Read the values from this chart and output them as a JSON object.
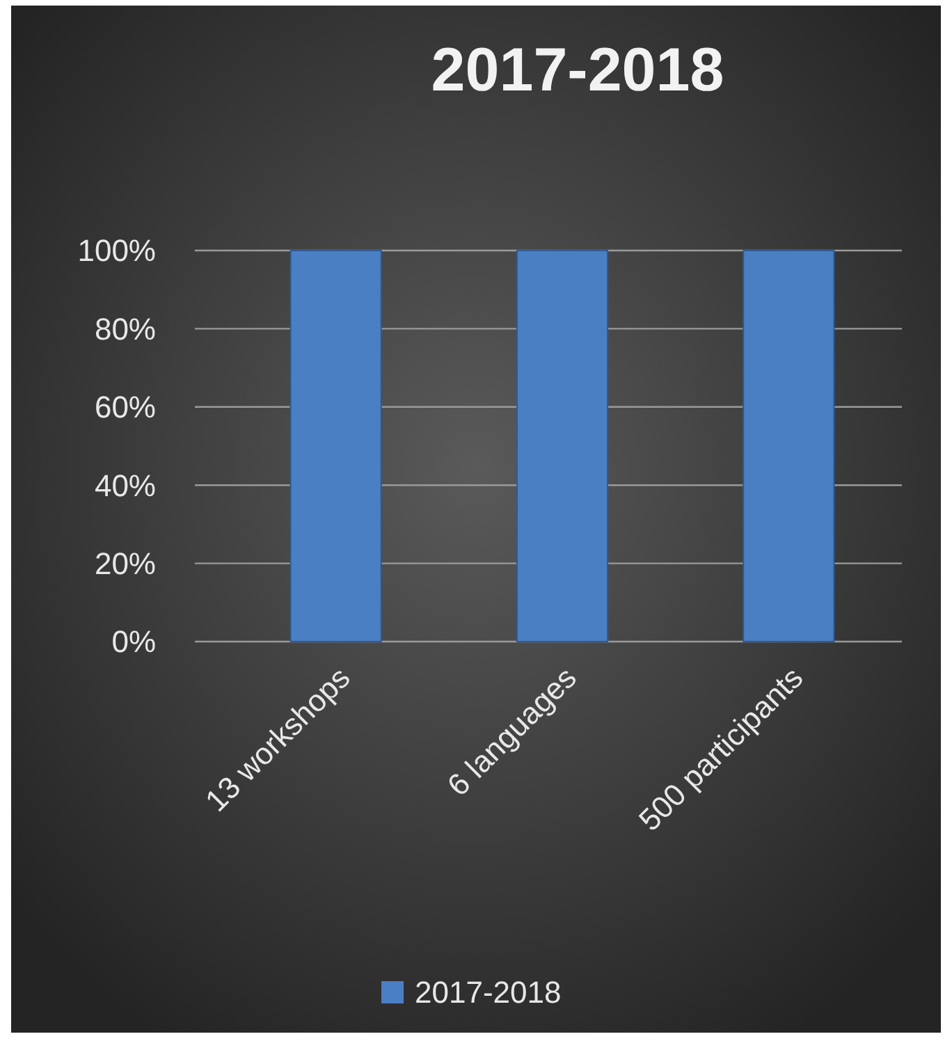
{
  "chart_data": {
    "type": "bar",
    "title": "2017-2018",
    "categories": [
      "13 workshops",
      "6 languages",
      "500  participants"
    ],
    "series": [
      {
        "name": "2017-2018",
        "color": "#4a7fc4",
        "values": [
          100,
          100,
          100
        ]
      }
    ],
    "ylim": [
      0,
      100
    ],
    "yticks": [
      {
        "value": 0,
        "label": "0%"
      },
      {
        "value": 20,
        "label": "20%"
      },
      {
        "value": 40,
        "label": "40%"
      },
      {
        "value": 60,
        "label": "60%"
      },
      {
        "value": 80,
        "label": "80%"
      },
      {
        "value": 100,
        "label": "100%"
      }
    ],
    "grid": "y",
    "legend": "bottom"
  }
}
